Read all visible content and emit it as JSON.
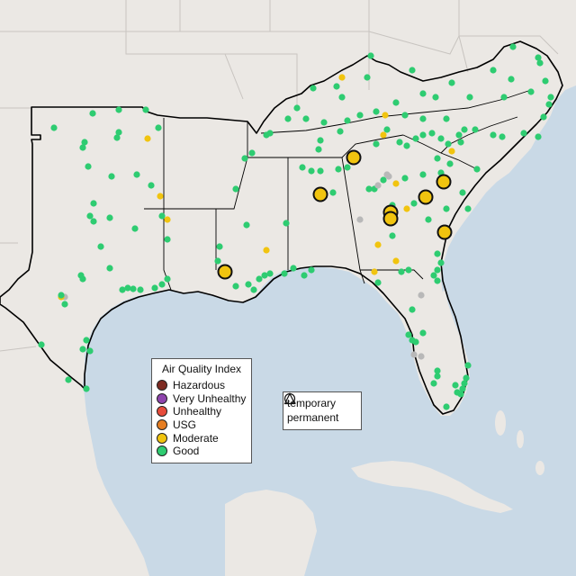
{
  "legend": {
    "title": "Air Quality Index",
    "categories": [
      {
        "label": "Hazardous",
        "color": "#7e2b22"
      },
      {
        "label": "Very Unhealthy",
        "color": "#8e44ad"
      },
      {
        "label": "Unhealthy",
        "color": "#e74c3c"
      },
      {
        "label": "USG",
        "color": "#e67e22"
      },
      {
        "label": "Moderate",
        "color": "#f1c40f"
      },
      {
        "label": "Good",
        "color": "#2ecc71"
      }
    ]
  },
  "shape_legend": {
    "temporary": "temporary",
    "permanent": "permanent"
  },
  "colors": {
    "water": "#c9d9e6",
    "land": "#ebe8e4",
    "good": "#2ecc71",
    "moderate": "#f1c40f",
    "no_data": "#b8b8b8",
    "border": "#000000"
  }
}
